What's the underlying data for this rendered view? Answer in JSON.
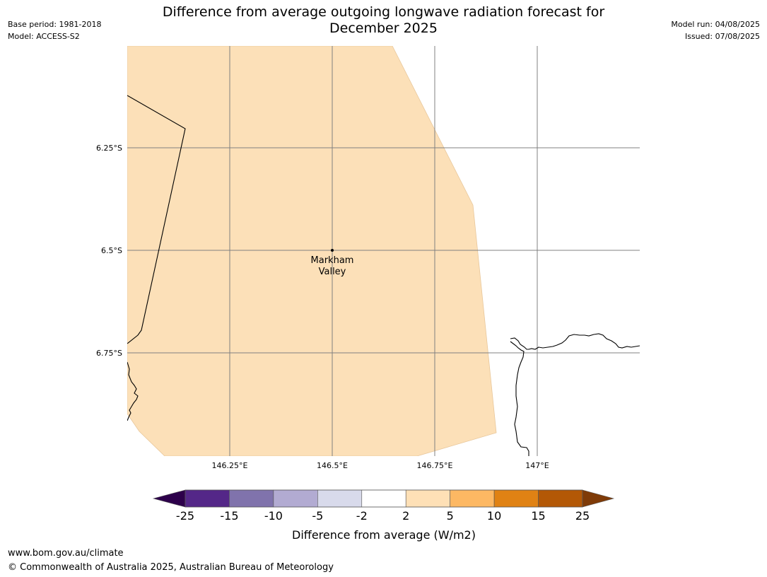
{
  "title": {
    "line1": "Difference from average outgoing longwave radiation forecast for",
    "line2": "December 2025"
  },
  "meta_left": {
    "base_period": "Base period: 1981-2018",
    "model": "Model: ACCESS-S2"
  },
  "meta_right": {
    "model_run": "Model run: 04/08/2025",
    "issued": "Issued: 07/08/2025"
  },
  "map": {
    "lon_ticks": [
      "146.25°E",
      "146.5°E",
      "146.75°E",
      "147°E"
    ],
    "lat_ticks": [
      "6.25°S",
      "6.5°S",
      "6.75°S"
    ],
    "place": {
      "line1": "Markham",
      "line2": "Valley"
    },
    "region_color": "#fce0b8",
    "region_category": "2 to 5"
  },
  "colorbar": {
    "label": "Difference from average (W/m2)",
    "ticks": [
      "-25",
      "-15",
      "-10",
      "-5",
      "-2",
      "2",
      "5",
      "10",
      "15",
      "25"
    ],
    "under_color": "#2d004b",
    "over_color": "#7f3b08",
    "colors": [
      "#542788",
      "#8073ac",
      "#b2abd2",
      "#d8daeb",
      "#ffffff",
      "#fee0b6",
      "#fdb863",
      "#e08214",
      "#b35806"
    ]
  },
  "footer": {
    "url": "www.bom.gov.au/climate",
    "copyright": "© Commonwealth of Australia 2025, Australian Bureau of Meteorology"
  }
}
